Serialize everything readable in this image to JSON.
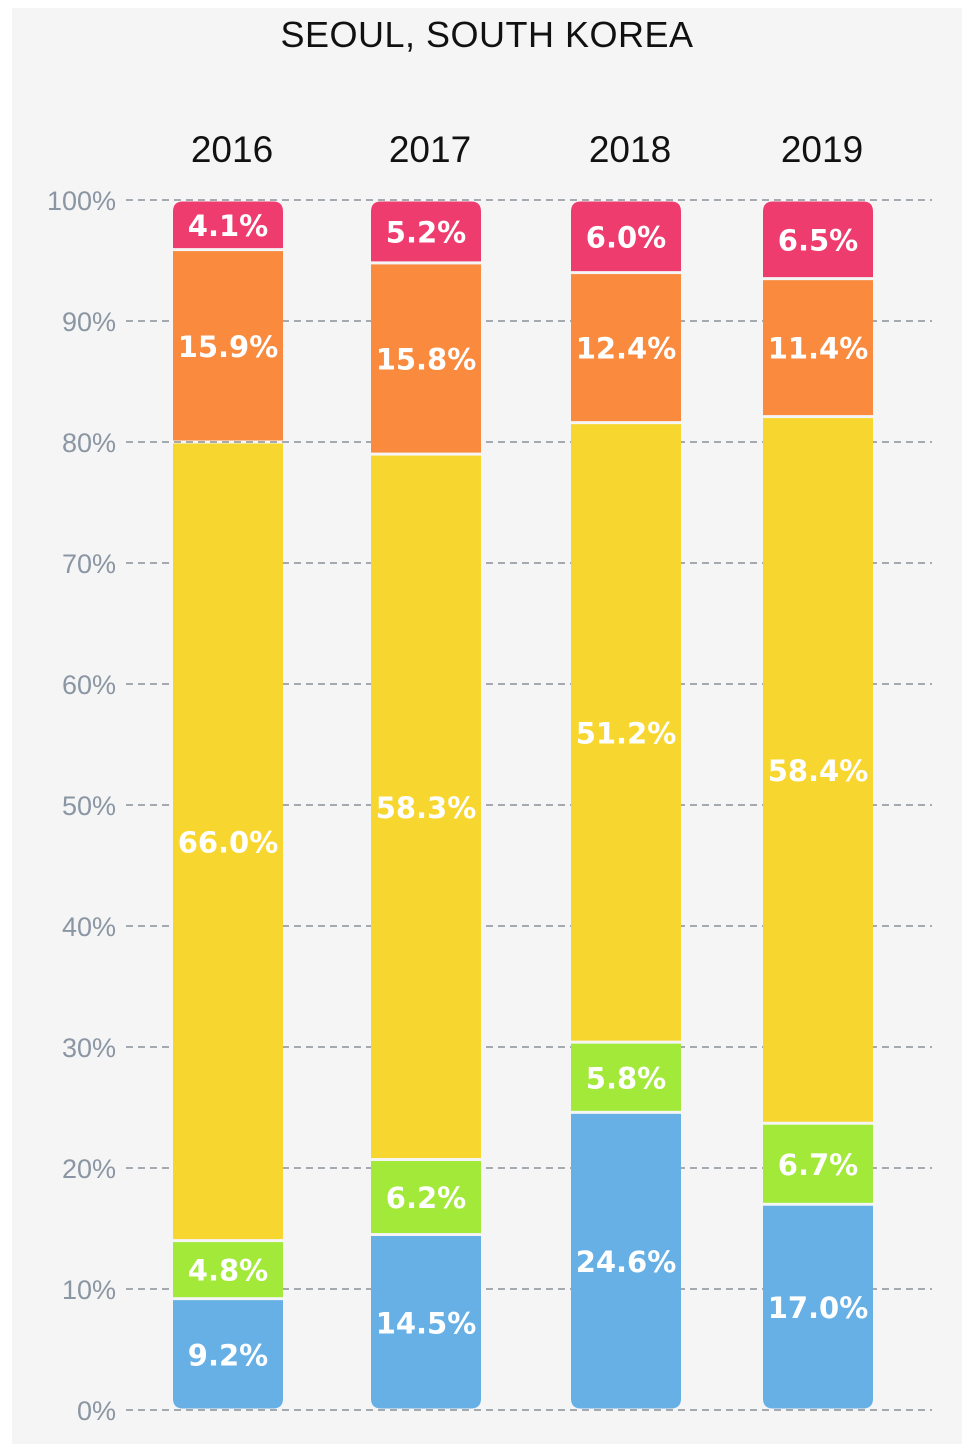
{
  "chart_data": {
    "type": "bar",
    "stacked": true,
    "title": "SEOUL, SOUTH KOREA",
    "categories": [
      "2016",
      "2017",
      "2018",
      "2019"
    ],
    "ylim": [
      0,
      100
    ],
    "yticks": [
      "0%",
      "10%",
      "20%",
      "30%",
      "40%",
      "50%",
      "60%",
      "70%",
      "80%",
      "90%",
      "100%"
    ],
    "grid": true,
    "series": [
      {
        "name": "blue",
        "color": "#66b0e6",
        "values": [
          9.2,
          14.5,
          24.6,
          17.0
        ],
        "labels": [
          "9.2%",
          "14.5%",
          "24.6%",
          "17.0%"
        ]
      },
      {
        "name": "green",
        "color": "#a2e93a",
        "values": [
          4.8,
          6.2,
          5.8,
          6.7
        ],
        "labels": [
          "4.8%",
          "6.2%",
          "5.8%",
          "6.7%"
        ]
      },
      {
        "name": "yellow",
        "color": "#f7d72f",
        "values": [
          66.0,
          58.3,
          51.2,
          58.4
        ],
        "labels": [
          "66.0%",
          "58.3%",
          "51.2%",
          "58.4%"
        ]
      },
      {
        "name": "orange",
        "color": "#f98a3e",
        "values": [
          15.9,
          15.8,
          12.4,
          11.4
        ],
        "labels": [
          "15.9%",
          "15.8%",
          "12.4%",
          "11.4%"
        ]
      },
      {
        "name": "pink",
        "color": "#ee3c6e",
        "values": [
          4.1,
          5.2,
          6.0,
          6.5
        ],
        "labels": [
          "4.1%",
          "5.2%",
          "6.0%",
          "6.5%"
        ]
      }
    ]
  }
}
